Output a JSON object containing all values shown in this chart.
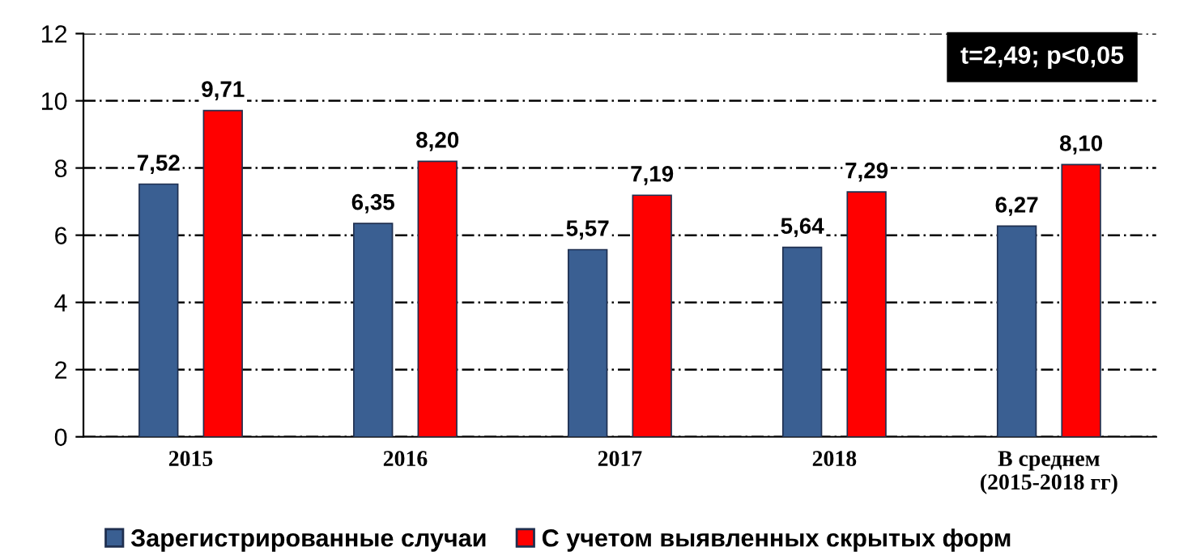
{
  "chart_data": {
    "type": "bar",
    "categories": [
      "2015",
      "2016",
      "2017",
      "2018",
      "В среднем\n(2015-2018 гг)"
    ],
    "series": [
      {
        "name": "Зарегистрированные случаи",
        "color": "#3a5f92",
        "values": [
          7.52,
          6.35,
          5.57,
          5.64,
          6.27
        ],
        "value_labels": [
          "7,52",
          "6,35",
          "5,57",
          "5,64",
          "6,27"
        ]
      },
      {
        "name": "С учетом выявленных скрытых форм",
        "color": "#ff0000",
        "values": [
          9.71,
          8.2,
          7.19,
          7.29,
          8.1
        ],
        "value_labels": [
          "9,71",
          "8,20",
          "7,19",
          "7,29",
          "8,10"
        ]
      }
    ],
    "ylim": [
      0,
      12
    ],
    "yticks": [
      0,
      2,
      4,
      6,
      8,
      10,
      12
    ],
    "grid": "y",
    "legend": "bottom",
    "annotations": [
      "t=2,49; p<0,05"
    ]
  }
}
